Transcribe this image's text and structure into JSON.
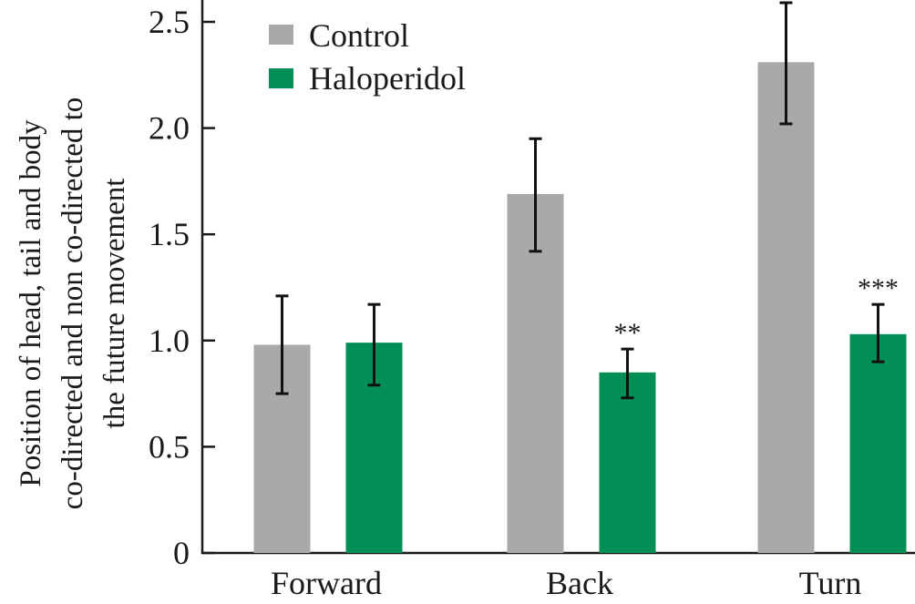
{
  "chart_data": {
    "type": "bar",
    "title": "",
    "xlabel": "",
    "ylabel_lines": [
      "Position of head, tail and body",
      "co-directed and non co-directed to",
      "the future movement"
    ],
    "categories": [
      "Forward",
      "Back",
      "Turn"
    ],
    "ylim": [
      0,
      2.5
    ],
    "yticks": [
      0,
      0.5,
      1.0,
      1.5,
      2.0,
      2.5
    ],
    "ytick_labels": [
      "0",
      "0.5",
      "1.0",
      "1.5",
      "2.0",
      "2.5"
    ],
    "grid": false,
    "legend_position": "top-left",
    "series": [
      {
        "name": "Control",
        "color": "#a9a9a7",
        "values": [
          0.98,
          1.69,
          2.31
        ],
        "error_low": [
          0.75,
          1.42,
          2.02
        ],
        "error_high": [
          1.21,
          1.95,
          2.59
        ],
        "significance": [
          "",
          "",
          ""
        ]
      },
      {
        "name": "Haloperidol",
        "color": "#028f55",
        "values": [
          0.99,
          0.85,
          1.03
        ],
        "error_low": [
          0.79,
          0.73,
          0.9
        ],
        "error_high": [
          1.17,
          0.96,
          1.17
        ],
        "significance": [
          "",
          "**",
          "***"
        ]
      }
    ]
  }
}
